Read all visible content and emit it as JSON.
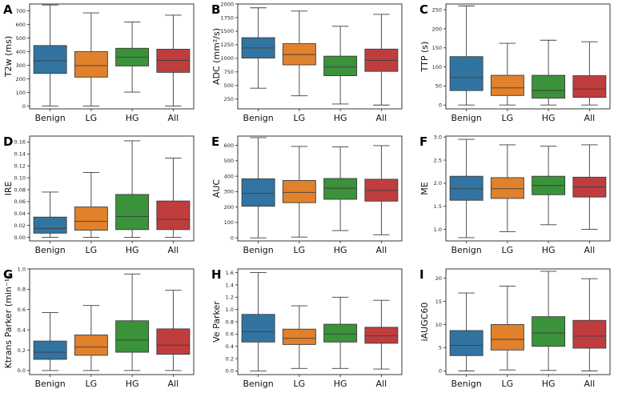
{
  "chart_data": [
    {
      "panel": "A",
      "type": "box",
      "ylabel": "T2w (ms)",
      "categories": [
        "Benign",
        "LG",
        "HG",
        "All"
      ],
      "colors": [
        "#3274a1",
        "#e1812c",
        "#3a923a",
        "#c03d3e"
      ],
      "ylim": [
        -20,
        750
      ],
      "yticks": [
        0,
        100,
        200,
        300,
        400,
        500,
        600,
        700
      ],
      "ytick_labels": [
        "0",
        "100",
        "200",
        "300",
        "400",
        "500",
        "600",
        "700"
      ],
      "boxes": [
        {
          "min": 0,
          "q1": 240,
          "median": 333,
          "q3": 445,
          "max": 743
        },
        {
          "min": 0,
          "q1": 213,
          "median": 298,
          "q3": 400,
          "max": 685
        },
        {
          "min": 103,
          "q1": 295,
          "median": 360,
          "q3": 425,
          "max": 618
        },
        {
          "min": 0,
          "q1": 248,
          "median": 335,
          "q3": 418,
          "max": 668
        }
      ]
    },
    {
      "panel": "B",
      "type": "box",
      "ylabel": "ADC (mm²/s)",
      "categories": [
        "Benign",
        "LG",
        "HG",
        "All"
      ],
      "colors": [
        "#3274a1",
        "#e1812c",
        "#3a923a",
        "#c03d3e"
      ],
      "ylim": [
        70,
        2000
      ],
      "yticks": [
        250,
        500,
        750,
        1000,
        1250,
        1500,
        1750,
        2000
      ],
      "ytick_labels": [
        "250",
        "500",
        "750",
        "1000",
        "1250",
        "1500",
        "1750",
        "2000"
      ],
      "boxes": [
        {
          "min": 450,
          "q1": 1005,
          "median": 1190,
          "q3": 1380,
          "max": 1930
        },
        {
          "min": 310,
          "q1": 880,
          "median": 1070,
          "q3": 1270,
          "max": 1870
        },
        {
          "min": 160,
          "q1": 680,
          "median": 840,
          "q3": 1040,
          "max": 1590
        },
        {
          "min": 140,
          "q1": 760,
          "median": 960,
          "q3": 1170,
          "max": 1810
        }
      ]
    },
    {
      "panel": "C",
      "type": "box",
      "ylabel": "TTP (s)",
      "categories": [
        "Benign",
        "LG",
        "HG",
        "All"
      ],
      "colors": [
        "#3274a1",
        "#e1812c",
        "#3a923a",
        "#c03d3e"
      ],
      "ylim": [
        -10,
        265
      ],
      "yticks": [
        0,
        50,
        100,
        150,
        200,
        250
      ],
      "ytick_labels": [
        "0",
        "50",
        "100",
        "150",
        "200",
        "250"
      ],
      "boxes": [
        {
          "min": 0,
          "q1": 38,
          "median": 72,
          "q3": 127,
          "max": 260
        },
        {
          "min": 0,
          "q1": 25,
          "median": 45,
          "q3": 78,
          "max": 162
        },
        {
          "min": 0,
          "q1": 18,
          "median": 38,
          "q3": 78,
          "max": 170
        },
        {
          "min": 0,
          "q1": 20,
          "median": 42,
          "q3": 77,
          "max": 166
        }
      ]
    },
    {
      "panel": "D",
      "type": "box",
      "ylabel": "IRE",
      "categories": [
        "Benign",
        "LG",
        "HG",
        "All"
      ],
      "colors": [
        "#3274a1",
        "#e1812c",
        "#3a923a",
        "#c03d3e"
      ],
      "ylim": [
        -0.006,
        0.17
      ],
      "yticks": [
        0.0,
        0.02,
        0.04,
        0.06,
        0.08,
        0.1,
        0.12,
        0.14,
        0.16
      ],
      "ytick_labels": [
        "0.00",
        "0.02",
        "0.04",
        "0.06",
        "0.08",
        "0.10",
        "0.12",
        "0.14",
        "0.16"
      ],
      "boxes": [
        {
          "min": 0.0,
          "q1": 0.007,
          "median": 0.015,
          "q3": 0.034,
          "max": 0.076
        },
        {
          "min": 0.0,
          "q1": 0.012,
          "median": 0.027,
          "q3": 0.051,
          "max": 0.109
        },
        {
          "min": 0.0,
          "q1": 0.013,
          "median": 0.035,
          "q3": 0.072,
          "max": 0.162
        },
        {
          "min": 0.0,
          "q1": 0.013,
          "median": 0.03,
          "q3": 0.061,
          "max": 0.133
        }
      ]
    },
    {
      "panel": "E",
      "type": "box",
      "ylabel": "AUC",
      "categories": [
        "Benign",
        "LG",
        "HG",
        "All"
      ],
      "colors": [
        "#3274a1",
        "#e1812c",
        "#3a923a",
        "#c03d3e"
      ],
      "ylim": [
        -20,
        660
      ],
      "yticks": [
        0,
        100,
        200,
        300,
        400,
        500,
        600
      ],
      "ytick_labels": [
        "0",
        "100",
        "200",
        "300",
        "400",
        "500",
        "600"
      ],
      "boxes": [
        {
          "min": 0,
          "q1": 205,
          "median": 288,
          "q3": 383,
          "max": 650
        },
        {
          "min": 5,
          "q1": 228,
          "median": 295,
          "q3": 372,
          "max": 593
        },
        {
          "min": 47,
          "q1": 250,
          "median": 322,
          "q3": 385,
          "max": 590
        },
        {
          "min": 20,
          "q1": 238,
          "median": 308,
          "q3": 380,
          "max": 598
        }
      ]
    },
    {
      "panel": "F",
      "type": "box",
      "ylabel": "ME",
      "categories": [
        "Benign",
        "LG",
        "HG",
        "All"
      ],
      "colors": [
        "#3274a1",
        "#e1812c",
        "#3a923a",
        "#c03d3e"
      ],
      "ylim": [
        0.75,
        3.02
      ],
      "yticks": [
        1.0,
        1.5,
        2.0,
        2.5,
        3.0
      ],
      "ytick_labels": [
        "1.0",
        "1.5",
        "2.0",
        "2.5",
        "3.0"
      ],
      "boxes": [
        {
          "min": 0.82,
          "q1": 1.63,
          "median": 1.88,
          "q3": 2.15,
          "max": 2.95
        },
        {
          "min": 0.95,
          "q1": 1.67,
          "median": 1.88,
          "q3": 2.12,
          "max": 2.83
        },
        {
          "min": 1.1,
          "q1": 1.75,
          "median": 1.95,
          "q3": 2.15,
          "max": 2.8
        },
        {
          "min": 1.0,
          "q1": 1.7,
          "median": 1.92,
          "q3": 2.13,
          "max": 2.83
        }
      ]
    },
    {
      "panel": "G",
      "type": "box",
      "ylabel": "Ktrans Parker (min⁻¹)",
      "categories": [
        "Benign",
        "LG",
        "HG",
        "All"
      ],
      "colors": [
        "#3274a1",
        "#e1812c",
        "#3a923a",
        "#c03d3e"
      ],
      "ylim": [
        -0.04,
        1.0
      ],
      "yticks": [
        0.0,
        0.2,
        0.4,
        0.6,
        0.8,
        1.0
      ],
      "ytick_labels": [
        "0.0",
        "0.2",
        "0.4",
        "0.6",
        "0.8",
        "1.0"
      ],
      "boxes": [
        {
          "min": 0.0,
          "q1": 0.11,
          "median": 0.18,
          "q3": 0.29,
          "max": 0.57
        },
        {
          "min": 0.0,
          "q1": 0.15,
          "median": 0.23,
          "q3": 0.35,
          "max": 0.64
        },
        {
          "min": 0.0,
          "q1": 0.18,
          "median": 0.3,
          "q3": 0.49,
          "max": 0.95
        },
        {
          "min": 0.0,
          "q1": 0.16,
          "median": 0.25,
          "q3": 0.41,
          "max": 0.79
        }
      ]
    },
    {
      "panel": "H",
      "type": "box",
      "ylabel": "Ve Parker",
      "categories": [
        "Benign",
        "LG",
        "HG",
        "All"
      ],
      "colors": [
        "#3274a1",
        "#e1812c",
        "#3a923a",
        "#c03d3e"
      ],
      "ylim": [
        -0.06,
        1.66
      ],
      "yticks": [
        0.0,
        0.2,
        0.4,
        0.6,
        0.8,
        1.0,
        1.2,
        1.4,
        1.6
      ],
      "ytick_labels": [
        "0.0",
        "0.2",
        "0.4",
        "0.6",
        "0.8",
        "1.0",
        "1.2",
        "1.4",
        "1.6"
      ],
      "boxes": [
        {
          "min": 0.0,
          "q1": 0.47,
          "median": 0.64,
          "q3": 0.92,
          "max": 1.6
        },
        {
          "min": 0.04,
          "q1": 0.43,
          "median": 0.53,
          "q3": 0.68,
          "max": 1.06
        },
        {
          "min": 0.04,
          "q1": 0.47,
          "median": 0.6,
          "q3": 0.76,
          "max": 1.2
        },
        {
          "min": 0.03,
          "q1": 0.45,
          "median": 0.57,
          "q3": 0.71,
          "max": 1.15
        }
      ]
    },
    {
      "panel": "I",
      "type": "box",
      "ylabel": "iAUGC60",
      "categories": [
        "Benign",
        "LG",
        "HG",
        "All"
      ],
      "colors": [
        "#3274a1",
        "#e1812c",
        "#3a923a",
        "#c03d3e"
      ],
      "ylim": [
        -0.8,
        22.0
      ],
      "yticks": [
        0,
        5,
        10,
        15,
        20
      ],
      "ytick_labels": [
        "0",
        "5",
        "10",
        "15",
        "20"
      ],
      "boxes": [
        {
          "min": 0.0,
          "q1": 3.3,
          "median": 5.5,
          "q3": 8.7,
          "max": 16.8
        },
        {
          "min": 0.2,
          "q1": 4.5,
          "median": 6.8,
          "q3": 10.0,
          "max": 18.3
        },
        {
          "min": 0.1,
          "q1": 5.3,
          "median": 8.2,
          "q3": 11.7,
          "max": 21.5
        },
        {
          "min": 0.0,
          "q1": 4.9,
          "median": 7.5,
          "q3": 10.9,
          "max": 19.9
        }
      ]
    }
  ]
}
